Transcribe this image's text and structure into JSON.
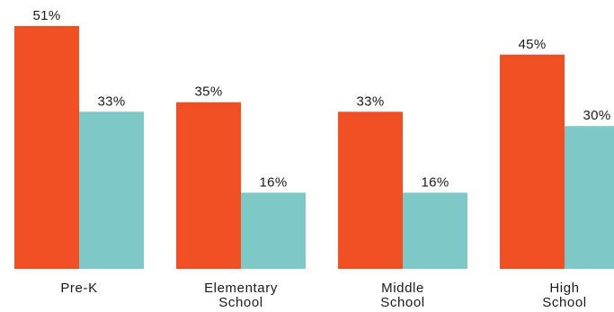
{
  "chart_data": {
    "type": "bar",
    "categories": [
      "Pre-K",
      "Elementary School",
      "Middle School",
      "High School"
    ],
    "category_lines": [
      [
        "Pre-K"
      ],
      [
        "Elementary",
        "School"
      ],
      [
        "Middle",
        "School"
      ],
      [
        "High",
        "School"
      ]
    ],
    "series": [
      {
        "color": "#f04e23",
        "values": [
          51,
          35,
          33,
          45
        ],
        "value_labels": [
          "51%",
          "35%",
          "33%",
          "45%"
        ]
      },
      {
        "color": "#7fc8c8",
        "values": [
          33,
          16,
          16,
          30
        ],
        "value_labels": [
          "33%",
          "16%",
          "16%",
          "30%"
        ]
      }
    ],
    "ylim": [
      0,
      51
    ],
    "grid": false,
    "legend": "none",
    "title": "",
    "xlabel": "",
    "ylabel": ""
  }
}
